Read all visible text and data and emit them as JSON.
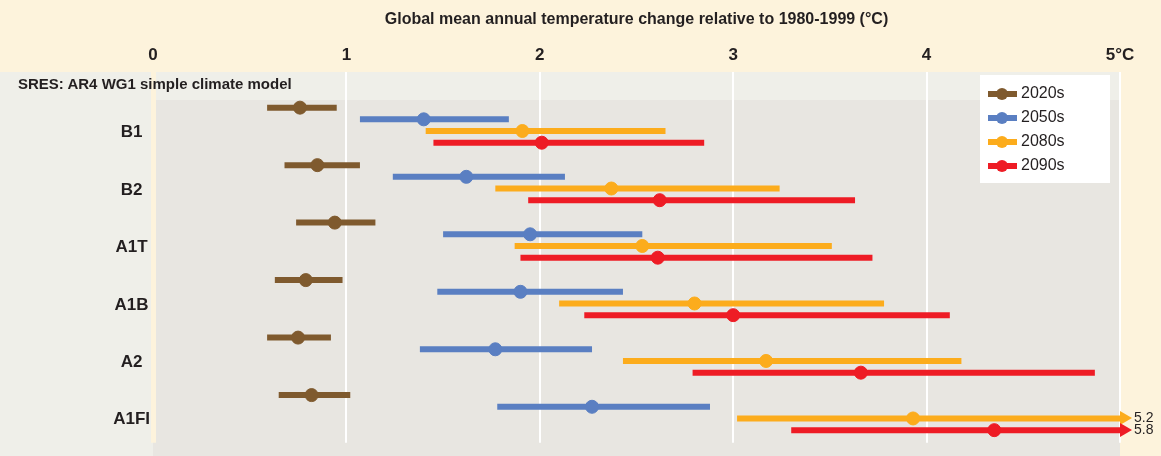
{
  "chart_data": {
    "type": "scatter",
    "orientation": "horizontal",
    "xlabel": "Global mean annual temperature change relative to 1980-1999 (°C)",
    "subtitle": "SRES: AR4 WG1 simple climate model",
    "categories": [
      "B1",
      "B2",
      "A1T",
      "A1B",
      "A2",
      "A1FI"
    ],
    "xlim": [
      0,
      5
    ],
    "xticks": [
      0,
      1,
      2,
      3,
      4,
      {
        "value": 5,
        "label": "5°C"
      }
    ],
    "grid": "x",
    "legend": "top right",
    "marker": "circle",
    "series": [
      {
        "name": "2020s",
        "color": "#7f5a2e",
        "values": [
          0.76,
          0.85,
          0.94,
          0.79,
          0.75,
          0.82
        ],
        "errors": [
          [
            0.59,
            0.95
          ],
          [
            0.68,
            1.07
          ],
          [
            0.74,
            1.15
          ],
          [
            0.63,
            0.98
          ],
          [
            0.59,
            0.92
          ],
          [
            0.65,
            1.02
          ]
        ]
      },
      {
        "name": "2050s",
        "color": "#5a7fc2",
        "values": [
          1.4,
          1.62,
          1.95,
          1.9,
          1.77,
          2.27
        ],
        "errors": [
          [
            1.07,
            1.84
          ],
          [
            1.24,
            2.13
          ],
          [
            1.5,
            2.53
          ],
          [
            1.47,
            2.43
          ],
          [
            1.38,
            2.27
          ],
          [
            1.78,
            2.88
          ]
        ]
      },
      {
        "name": "2080s",
        "color": "#fcac1c",
        "values": [
          1.91,
          2.37,
          2.53,
          2.8,
          3.17,
          3.93
        ],
        "errors": [
          [
            1.41,
            2.65
          ],
          [
            1.77,
            3.24
          ],
          [
            1.87,
            3.51
          ],
          [
            2.1,
            3.78
          ],
          [
            2.43,
            4.18
          ],
          [
            3.02,
            5
          ]
        ]
      },
      {
        "name": "2090s",
        "color": "#ee1c25",
        "values": [
          2.01,
          2.62,
          2.61,
          3.0,
          3.66,
          4.35
        ],
        "errors": [
          [
            1.45,
            2.85
          ],
          [
            1.94,
            3.63
          ],
          [
            1.9,
            3.72
          ],
          [
            2.23,
            4.12
          ],
          [
            2.79,
            4.87
          ],
          [
            3.3,
            5
          ]
        ]
      }
    ],
    "annotations": [
      {
        "text": "5.2",
        "x": 5,
        "y": "A1FI"
      },
      {
        "text": "5.8",
        "x": 5,
        "y": "A1FI"
      }
    ]
  }
}
